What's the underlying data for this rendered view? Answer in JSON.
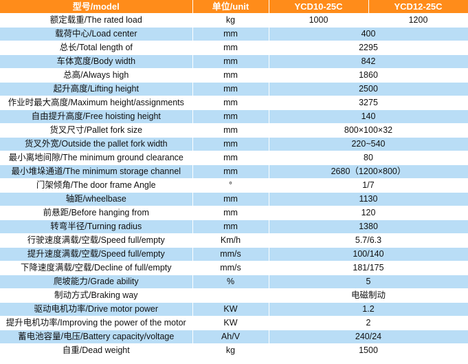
{
  "header": {
    "model": "型号/model",
    "unit": "单位/unit",
    "m1": "YCD10-25C",
    "m2": "YCD12-25C"
  },
  "rows": [
    {
      "label": "额定载重/The rated load",
      "unit": "kg",
      "v1": "1000",
      "v2": "1200"
    },
    {
      "label": "载荷中心/Load center",
      "unit": "mm",
      "value": "400"
    },
    {
      "label": "总长/Total length of",
      "unit": "mm",
      "value": "2295"
    },
    {
      "label": "车体宽度/Body width",
      "unit": "mm",
      "value": "842"
    },
    {
      "label": "总高/Always high",
      "unit": "mm",
      "value": "1860"
    },
    {
      "label": "起升高度/Lifting height",
      "unit": "mm",
      "value": "2500"
    },
    {
      "label": "作业时最大高度/Maximum height/assignments",
      "unit": "mm",
      "value": "3275"
    },
    {
      "label": "自由提升高度/Free hoisting height",
      "unit": "mm",
      "value": "140"
    },
    {
      "label": "货叉尺寸/Pallet fork size",
      "unit": "mm",
      "value": "800×100×32"
    },
    {
      "label": "货叉外宽/Outside the pallet fork width",
      "unit": "mm",
      "value": "220~540"
    },
    {
      "label": "最小离地间隙/The minimum ground clearance",
      "unit": "mm",
      "value": "80"
    },
    {
      "label": "最小堆垛通道/The minimum storage channel",
      "unit": "mm",
      "value": "2680（1200×800）"
    },
    {
      "label": "门架倾角/The door frame Angle",
      "unit": "°",
      "value": "1/7"
    },
    {
      "label": "轴距/wheelbase",
      "unit": "mm",
      "value": "1130"
    },
    {
      "label": "前悬距/Before hanging from",
      "unit": "mm",
      "value": "120"
    },
    {
      "label": "转弯半径/Turning radius",
      "unit": "mm",
      "value": "1380"
    },
    {
      "label": "行驶速度满载/空载/Speed full/empty",
      "unit": "Km/h",
      "value": "5.7/6.3"
    },
    {
      "label": "提升速度满载/空载/Speed full/empty",
      "unit": "mm/s",
      "value": "100/140"
    },
    {
      "label": "下降速度满载/空载/Decline of full/empty",
      "unit": "mm/s",
      "value": "181/175"
    },
    {
      "label": "爬坡能力/Grade ability",
      "unit": "%",
      "value": "5"
    },
    {
      "label": "制动方式/Braking way",
      "unit": "",
      "value": "电磁制动"
    },
    {
      "label": "驱动电机功率/Drive motor power",
      "unit": "KW",
      "value": "1.2"
    },
    {
      "label": "提升电机功率/Improving the power of the motor",
      "unit": "KW",
      "value": "2"
    },
    {
      "label": "蓄电池容量/电压/Battery capacity/voltage",
      "unit": "Ah/V",
      "value": "240/24"
    },
    {
      "label": "自重/Dead weight",
      "unit": "kg",
      "value": "1500"
    }
  ],
  "colors": {
    "header_bg": "#ff8c1a",
    "stripe_bg": "#b9ddf6",
    "plain_bg": "#ffffff"
  }
}
